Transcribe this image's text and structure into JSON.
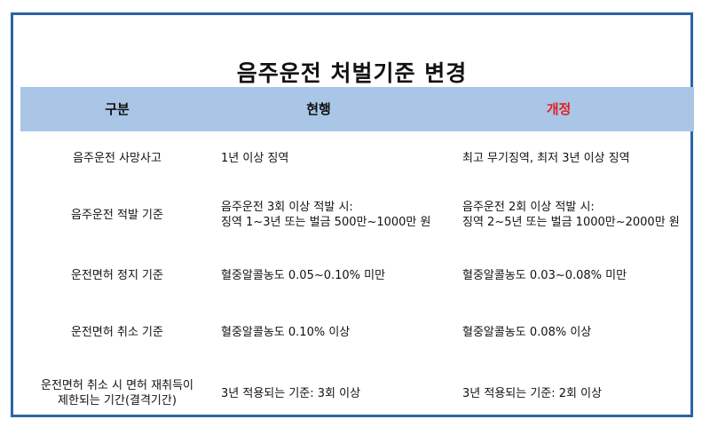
{
  "title": "음주운전 처벌기준 변경",
  "headers": {
    "category": "구분",
    "current": "현행",
    "revised": "개정"
  },
  "colors": {
    "border": "#2e64a6",
    "header_bg": "#a9c6e6",
    "revised_header": "#e02020"
  },
  "rows": [
    {
      "category": [
        "음주운전 사망사고"
      ],
      "current": [
        "1년 이상 징역"
      ],
      "revised": [
        "최고 무기징역, 최저 3년 이상 징역"
      ]
    },
    {
      "category": [
        "음주운전 적발 기준"
      ],
      "current": [
        "음주운전 3회 이상 적발 시:",
        "징역 1~3년 또는 벌금 500만~1000만 원"
      ],
      "revised": [
        "음주운전 2회 이상 적발 시:",
        "징역 2~5년 또는 벌금 1000만~2000만 원"
      ]
    },
    {
      "category": [
        "운전면허 정지 기준"
      ],
      "current": [
        "혈중알콜농도 0.05~0.10% 미만"
      ],
      "revised": [
        "혈중알콜농도 0.03~0.08% 미만"
      ]
    },
    {
      "category": [
        "운전면허 취소 기준"
      ],
      "current": [
        "혈중알콜농도 0.10% 이상"
      ],
      "revised": [
        "혈중알콜농도 0.08% 이상"
      ]
    },
    {
      "category": [
        "운전면허 취소 시 면허 재취득이",
        "제한되는 기간(결격기간)"
      ],
      "current": [
        "3년 적용되는 기준: 3회 이상"
      ],
      "revised": [
        "3년 적용되는 기준: 2회 이상"
      ]
    }
  ]
}
